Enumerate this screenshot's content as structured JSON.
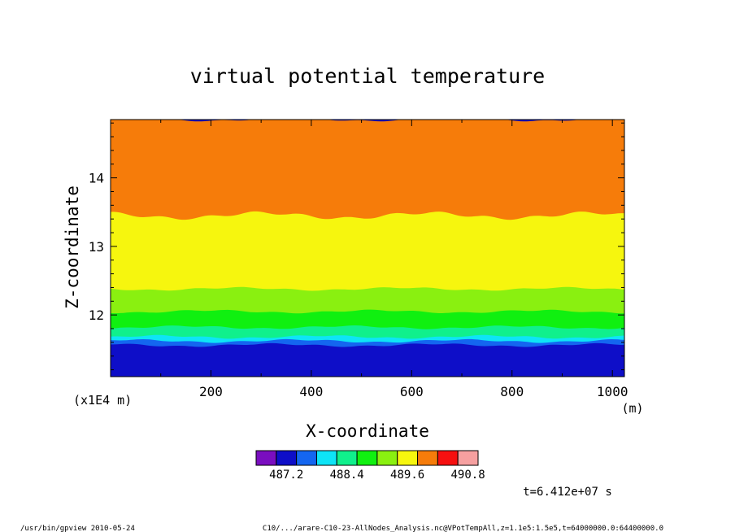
{
  "chart_data": {
    "type": "heatmap",
    "title": "virtual potential temperature",
    "xlabel": "X-coordinate",
    "ylabel": "Z-coordinate",
    "x_unit": "(m)",
    "y_unit": "(x1E4 m)",
    "xlim": [
      0,
      1024
    ],
    "ylim": [
      11.1,
      14.85
    ],
    "x_ticks": [
      200,
      400,
      600,
      800,
      1000
    ],
    "y_ticks": [
      12,
      13,
      14
    ],
    "x_tick_labels": [
      "200",
      "400",
      "600",
      "800",
      "1000"
    ],
    "y_tick_labels": [
      "12",
      "13",
      "14"
    ],
    "time_label": "t=6.412e+07 s",
    "colorbar": {
      "colors": [
        "#7a0ec0",
        "#0e0ec8",
        "#1466f0",
        "#0ee4f6",
        "#10f08c",
        "#10f010",
        "#8af010",
        "#f6f60e",
        "#f67c0a",
        "#f61010",
        "#f6a0a0"
      ],
      "tick_labels": [
        "487.2",
        "488.4",
        "489.6",
        "490.8"
      ]
    },
    "bands": [
      {
        "color": "#0e0ec8",
        "z_top": 11.56
      },
      {
        "color": "#1466f0",
        "z_top": 11.62
      },
      {
        "color": "#0ee4f6",
        "z_top": 11.68
      },
      {
        "color": "#10f08c",
        "z_top": 11.82
      },
      {
        "color": "#10f010",
        "z_top": 12.05
      },
      {
        "color": "#8af010",
        "z_top": 12.38
      },
      {
        "color": "#f6f60e",
        "z_top": 13.45
      },
      {
        "color": "#f67c0a",
        "z_top": 14.85
      }
    ]
  },
  "footer": {
    "left": "/usr/bin/gpview  2010-05-24",
    "right": "C10/.../arare-C10-23-AllNodes_Analysis.nc@VPotTempAll,z=1.1e5:1.5e5,t=64000000.0:64400000.0"
  }
}
